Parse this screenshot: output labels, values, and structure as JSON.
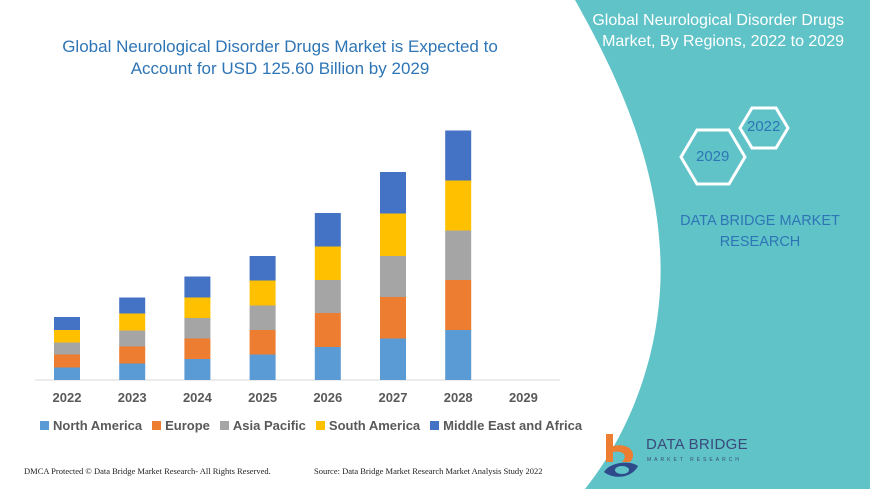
{
  "colors": {
    "panel": "#5fc3c8",
    "title": "#2e75b6",
    "north_america": "#5b9bd5",
    "europe": "#ed7d31",
    "asia_pacific": "#a5a5a5",
    "south_america": "#ffc000",
    "mea": "#4472c4"
  },
  "chart_data": {
    "type": "bar",
    "stacked": true,
    "title": "Global Neurological Disorder Drugs Market is Expected to Account for USD 125.60 Billion by 2029",
    "xlabel": "",
    "ylabel": "",
    "grid": false,
    "legend_position": "bottom",
    "categories": [
      "2022",
      "2023",
      "2024",
      "2025",
      "2026",
      "2027",
      "2028",
      "2029"
    ],
    "series": [
      {
        "name": "North America",
        "color": "#5b9bd5",
        "values": [
          12.5,
          16.5,
          21,
          25.5,
          33,
          41.5,
          50,
          0
        ]
      },
      {
        "name": "Europe",
        "color": "#ed7d31",
        "values": [
          13,
          17,
          20.5,
          24.5,
          34,
          41.5,
          50,
          0
        ]
      },
      {
        "name": "Asia Pacific",
        "color": "#a5a5a5",
        "values": [
          12,
          16,
          20.5,
          24.5,
          33,
          41,
          49.5,
          0
        ]
      },
      {
        "name": "South America",
        "color": "#ffc000",
        "values": [
          12.5,
          17,
          20.5,
          25,
          33.5,
          42.5,
          50,
          0
        ]
      },
      {
        "name": "Middle East and Africa",
        "color": "#4472c4",
        "values": [
          13,
          16,
          21,
          24.5,
          33.5,
          41.5,
          50,
          0
        ]
      }
    ]
  },
  "panel": {
    "title": "Global Neurological Disorder Drugs Market, By Regions, 2022 to 2029",
    "hex_start": "2022",
    "hex_end": "2029",
    "brand": "DATA BRIDGE MARKET RESEARCH"
  },
  "logo": {
    "name": "DATA BRIDGE",
    "sub": "MARKET RESEARCH"
  },
  "footer": {
    "left": "DMCA Protected © Data Bridge Market Research- All Rights Reserved.",
    "right": "Source: Data Bridge Market Research Market Analysis Study 2022"
  }
}
